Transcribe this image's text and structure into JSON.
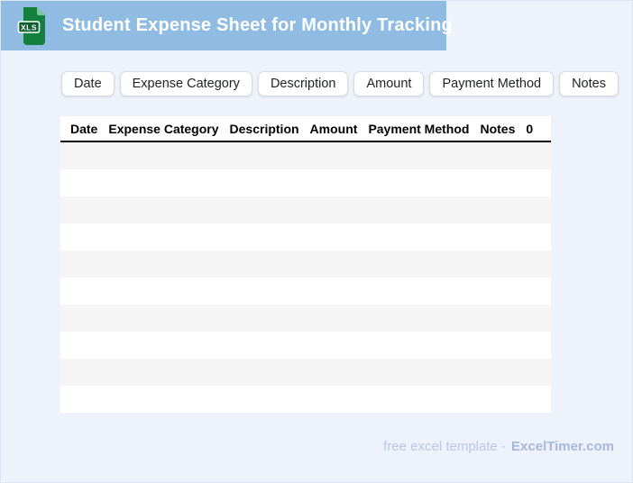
{
  "window": {
    "background": "#eef3fb",
    "border_color": "#dde6f2"
  },
  "banner": {
    "title": "Student Expense Sheet for Monthly Tracking",
    "background": "#90bce4",
    "title_color": "#ffffff",
    "icon": {
      "label": "XLS",
      "body_color": "#14803e",
      "fold_color": "#7cc49a",
      "badge_color": "#0b5e2d",
      "badge_text_color": "#ffffff"
    }
  },
  "chips": {
    "items": [
      {
        "label": "Date"
      },
      {
        "label": "Expense Category"
      },
      {
        "label": "Description"
      },
      {
        "label": "Amount"
      },
      {
        "label": "Payment Method"
      },
      {
        "label": "Notes"
      }
    ]
  },
  "table": {
    "columns": [
      {
        "label": "Date"
      },
      {
        "label": "Expense Category"
      },
      {
        "label": "Description"
      },
      {
        "label": "Amount"
      },
      {
        "label": "Payment Method"
      },
      {
        "label": "Notes"
      },
      {
        "label": "0"
      }
    ],
    "empty_row_count": 10,
    "stripe_color": "#f5f5f5",
    "row_color": "#ffffff",
    "header_underline_color": "#000000"
  },
  "footer": {
    "prefix": "free excel template -",
    "brand": "ExcelTimer.com",
    "prefix_color": "#bac6e5",
    "brand_color": "#a7b6dd"
  }
}
